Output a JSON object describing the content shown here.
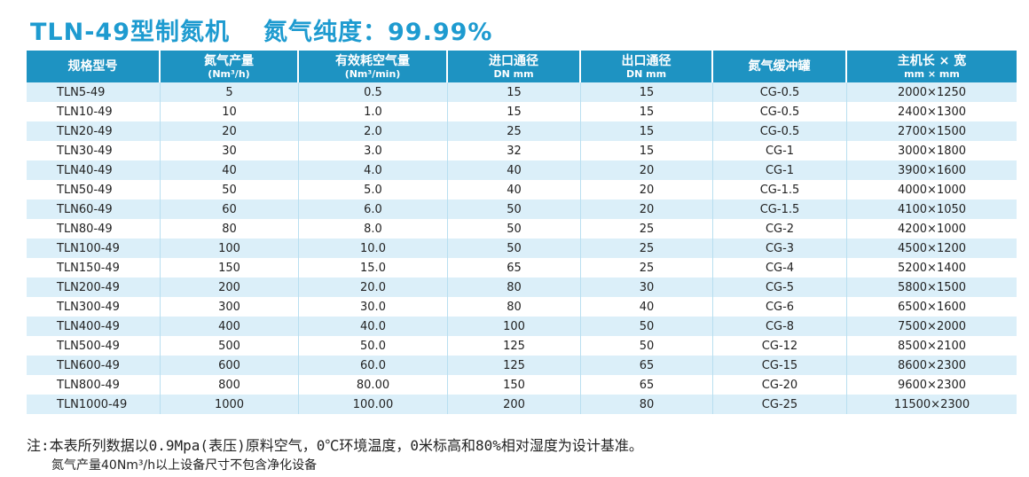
{
  "title": {
    "model": "TLN-49型制氮机",
    "purity": "氮气纯度：99.99%"
  },
  "table": {
    "headers": [
      {
        "main": "规格型号",
        "sub": ""
      },
      {
        "main": "氮气产量",
        "sub": "(Nm³/h)"
      },
      {
        "main": "有效耗空气量",
        "sub": "(Nm³/min)"
      },
      {
        "main": "进口通径",
        "sub": "DN mm"
      },
      {
        "main": "出口通径",
        "sub": "DN mm"
      },
      {
        "main": "氮气缓冲罐",
        "sub": ""
      },
      {
        "main": "主机长 × 宽",
        "sub": "mm × mm"
      }
    ],
    "rows": [
      [
        "TLN5-49",
        "5",
        "0.5",
        "15",
        "15",
        "CG-0.5",
        "2000×1250"
      ],
      [
        "TLN10-49",
        "10",
        "1.0",
        "15",
        "15",
        "CG-0.5",
        "2400×1300"
      ],
      [
        "TLN20-49",
        "20",
        "2.0",
        "25",
        "15",
        "CG-0.5",
        "2700×1500"
      ],
      [
        "TLN30-49",
        "30",
        "3.0",
        "32",
        "15",
        "CG-1",
        "3000×1800"
      ],
      [
        "TLN40-49",
        "40",
        "4.0",
        "40",
        "20",
        "CG-1",
        "3900×1600"
      ],
      [
        "TLN50-49",
        "50",
        "5.0",
        "40",
        "20",
        "CG-1.5",
        "4000×1000"
      ],
      [
        "TLN60-49",
        "60",
        "6.0",
        "50",
        "20",
        "CG-1.5",
        "4100×1050"
      ],
      [
        "TLN80-49",
        "80",
        "8.0",
        "50",
        "25",
        "CG-2",
        "4200×1000"
      ],
      [
        "TLN100-49",
        "100",
        "10.0",
        "50",
        "25",
        "CG-3",
        "4500×1200"
      ],
      [
        "TLN150-49",
        "150",
        "15.0",
        "65",
        "25",
        "CG-4",
        "5200×1400"
      ],
      [
        "TLN200-49",
        "200",
        "20.0",
        "80",
        "30",
        "CG-5",
        "5800×1500"
      ],
      [
        "TLN300-49",
        "300",
        "30.0",
        "80",
        "40",
        "CG-6",
        "6500×1600"
      ],
      [
        "TLN400-49",
        "400",
        "40.0",
        "100",
        "50",
        "CG-8",
        "7500×2000"
      ],
      [
        "TLN500-49",
        "500",
        "50.0",
        "125",
        "50",
        "CG-12",
        "8500×2100"
      ],
      [
        "TLN600-49",
        "600",
        "60.0",
        "125",
        "65",
        "CG-15",
        "8600×2300"
      ],
      [
        "TLN800-49",
        "800",
        "80.00",
        "150",
        "65",
        "CG-20",
        "9600×2300"
      ],
      [
        "TLN1000-49",
        "1000",
        "100.00",
        "200",
        "80",
        "CG-25",
        "11500×2300"
      ]
    ]
  },
  "notes": {
    "line1": "注:本表所列数据以0.9Mpa(表压)原料空气，0℃环境温度，0米标高和80%相对湿度为设计基准。",
    "line2": "氮气产量40Nm³/h以上设备尺寸不包含净化设备"
  },
  "colors": {
    "title": "#1e9bd0",
    "header_bg": "#1e93c2",
    "row_stripe": "#dbeff9"
  }
}
